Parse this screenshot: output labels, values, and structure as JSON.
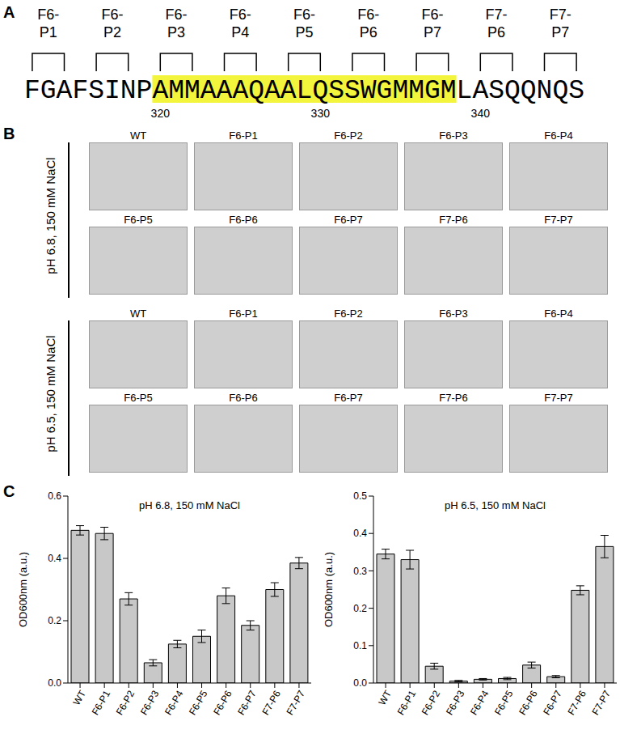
{
  "panel_labels": [
    "A",
    "B",
    "C"
  ],
  "panel_a": {
    "sequence": "FGAFSINPAMMAAAQAALQSSWGMMGMLASQQNQS",
    "first_residue": 312,
    "highlight": [
      320,
      338
    ],
    "highlight_color": "#f3f53c",
    "residue_numbers": [
      320,
      330,
      340
    ],
    "segments": [
      {
        "label": "F6-P1",
        "residues": [
          312,
          314
        ]
      },
      {
        "label": "F6-P2",
        "residues": [
          316,
          318
        ]
      },
      {
        "label": "F6-P3",
        "residues": [
          320,
          322
        ]
      },
      {
        "label": "F6-P4",
        "residues": [
          324,
          326
        ]
      },
      {
        "label": "F6-P5",
        "residues": [
          328,
          330
        ]
      },
      {
        "label": "F6-P6",
        "residues": [
          332,
          334
        ]
      },
      {
        "label": "F6-P7",
        "residues": [
          336,
          338
        ]
      },
      {
        "label": "F7-P6",
        "residues": [
          340,
          342
        ]
      },
      {
        "label": "F7-P7",
        "residues": [
          344,
          346
        ]
      }
    ]
  },
  "panel_b": {
    "groups": [
      {
        "condition": "pH 6.8, 150 mM NaCl",
        "images": [
          "WT",
          "F6-P1",
          "F6-P2",
          "F6-P3",
          "F6-P4",
          "F6-P5",
          "F6-P6",
          "F6-P7",
          "F7-P6",
          "F7-P7"
        ]
      },
      {
        "condition": "pH 6.5, 150 mM NaCl",
        "images": [
          "WT",
          "F6-P1",
          "F6-P2",
          "F6-P3",
          "F6-P4",
          "F6-P5",
          "F6-P6",
          "F6-P7",
          "F7-P6",
          "F7-P7"
        ]
      }
    ]
  },
  "chart_data": [
    {
      "type": "bar",
      "title": "pH 6.8, 150 mM NaCl",
      "y_label": "OD600nm (a.u.)",
      "categories": [
        "WT",
        "F6-P1",
        "F6-P2",
        "F6-P3",
        "F6-P4",
        "F6-P5",
        "F6-P6",
        "F6-P7",
        "F7-P6",
        "F7-P7"
      ],
      "values": [
        0.49,
        0.48,
        0.27,
        0.065,
        0.125,
        0.15,
        0.28,
        0.185,
        0.3,
        0.385
      ],
      "errors": [
        0.015,
        0.02,
        0.02,
        0.01,
        0.012,
        0.02,
        0.025,
        0.015,
        0.022,
        0.018
      ],
      "color": "#c8c8c8",
      "ylim": [
        0,
        0.6
      ],
      "yticks": [
        {
          "value": 0,
          "label": "0.0"
        },
        0.2,
        0.4,
        0.6
      ],
      "grid": false
    },
    {
      "type": "bar",
      "title": "pH 6.5, 150 mM NaCl",
      "y_label": "OD600nm (a.u.)",
      "categories": [
        "WT",
        "F6-P1",
        "F6-P2",
        "F6-P3",
        "F6-P4",
        "F6-P5",
        "F6-P6",
        "F6-P7",
        "F7-P6",
        "F7-P7"
      ],
      "values": [
        0.345,
        0.33,
        0.045,
        0.005,
        0.01,
        0.012,
        0.048,
        0.017,
        0.248,
        0.365
      ],
      "errors": [
        0.013,
        0.025,
        0.008,
        0.002,
        0.002,
        0.003,
        0.008,
        0.003,
        0.012,
        0.03
      ],
      "color": "#c8c8c8",
      "ylim": [
        0,
        0.5
      ],
      "yticks": [
        {
          "value": 0,
          "label": "0.0"
        },
        0.1,
        0.2,
        0.3,
        0.4,
        0.5
      ],
      "grid": false
    }
  ]
}
